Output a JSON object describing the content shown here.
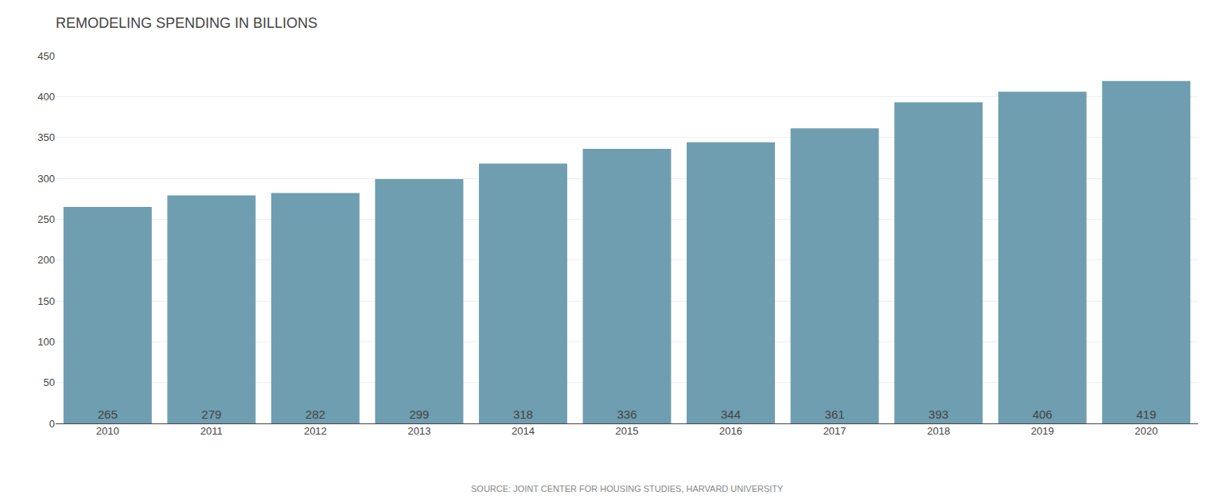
{
  "chart_data": {
    "type": "bar",
    "title": "REMODELING SPENDING IN BILLIONS",
    "categories": [
      "2010",
      "2011",
      "2012",
      "2013",
      "2014",
      "2015",
      "2016",
      "2017",
      "2018",
      "2019",
      "2020"
    ],
    "values": [
      265,
      279,
      282,
      299,
      318,
      336,
      344,
      361,
      393,
      406,
      419
    ],
    "color": "#6f9eb0",
    "ylim": [
      0,
      450
    ],
    "yticks": [
      0,
      50,
      100,
      150,
      200,
      250,
      300,
      350,
      400,
      450
    ],
    "grid": true,
    "data_labels": true,
    "annotations": [
      "SOURCE: JOINT CENTER FOR HOUSING STUDIES, HARVARD UNIVERSITY"
    ]
  }
}
